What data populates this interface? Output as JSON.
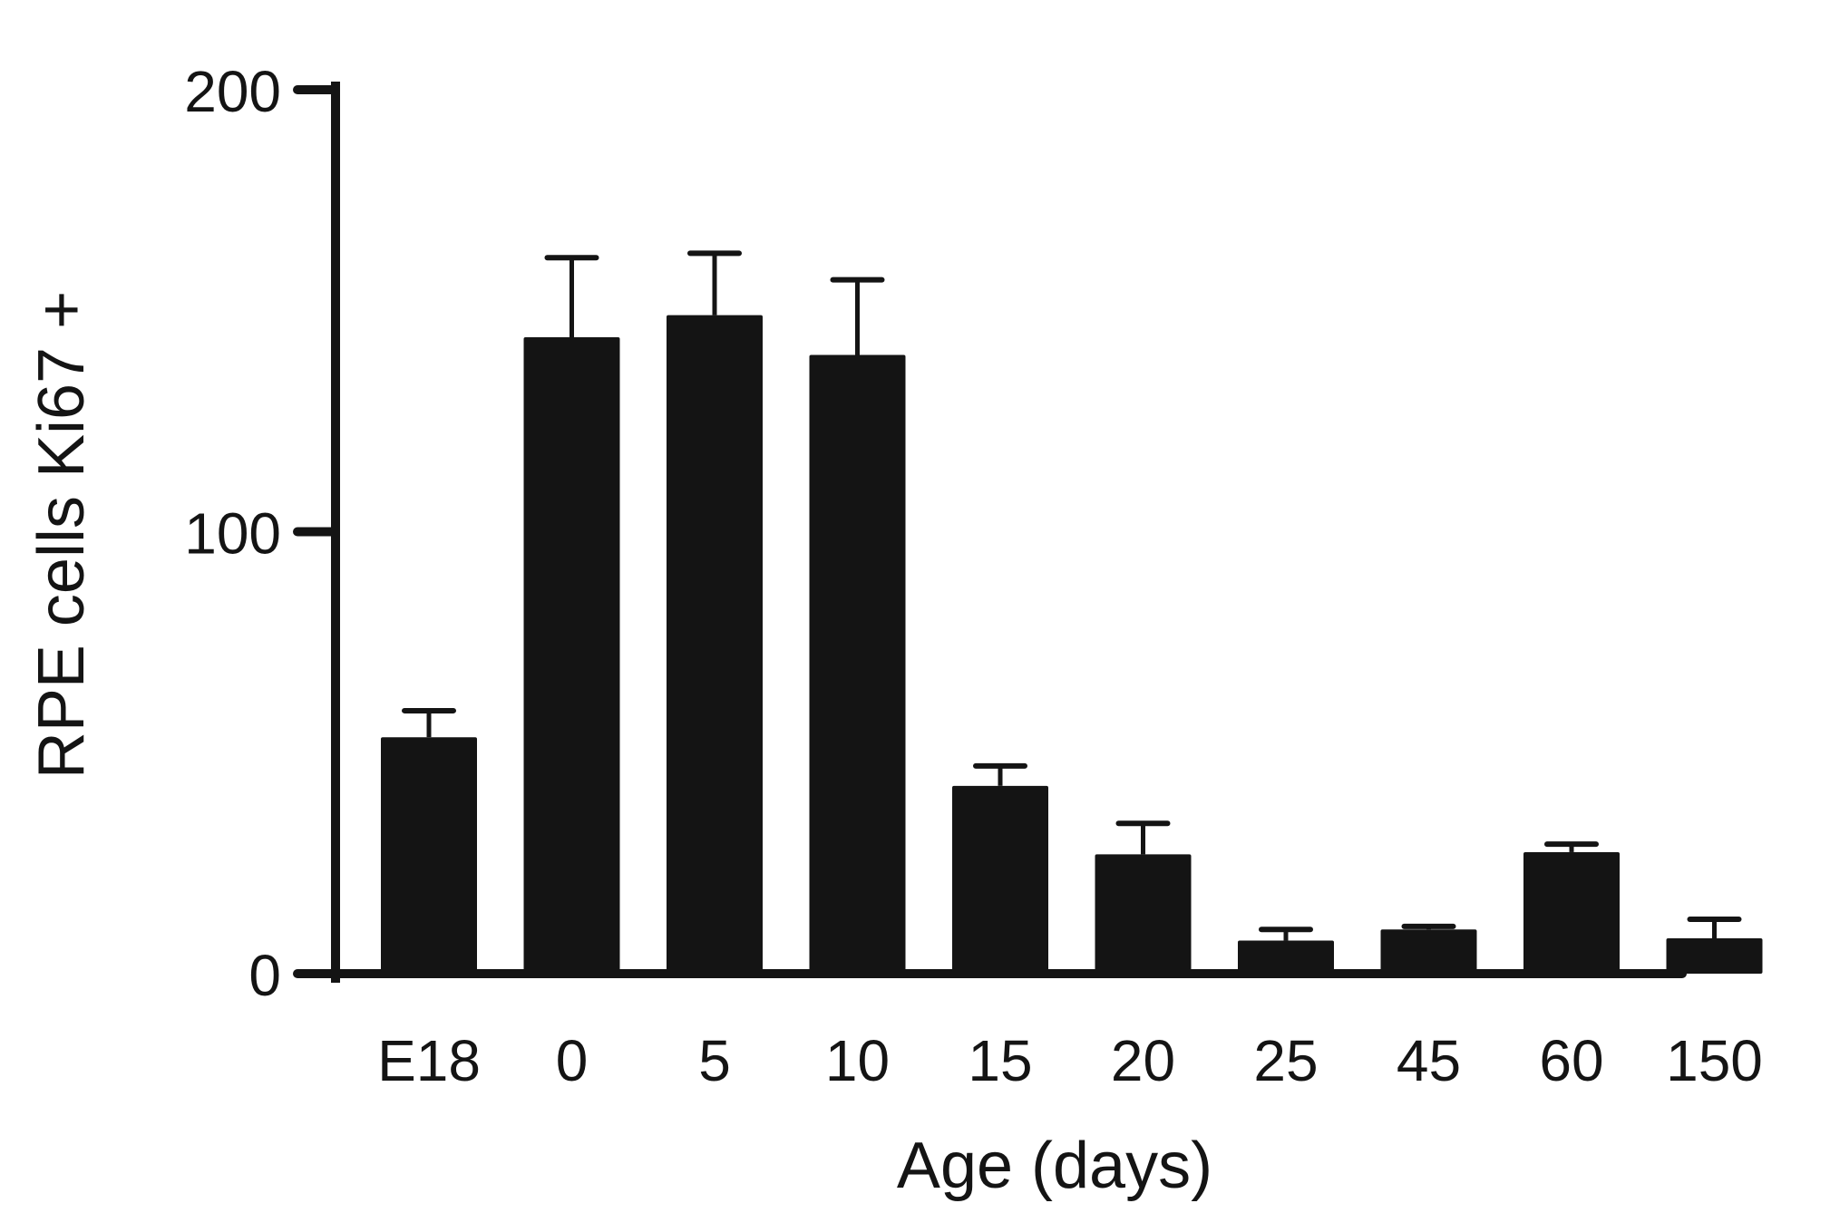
{
  "chart_data": {
    "type": "bar",
    "title": "",
    "xlabel": "Age (days)",
    "ylabel": "RPE cells Ki67 +",
    "categories": [
      "E18",
      "0",
      "5",
      "10",
      "15",
      "20",
      "25",
      "45",
      "60",
      "150"
    ],
    "values": [
      53.5,
      144,
      149,
      140,
      42.5,
      27,
      7.5,
      10,
      27.5,
      8
    ],
    "error_upper": [
      59.5,
      162,
      163,
      157,
      47,
      34,
      10,
      10.7,
      29.3,
      12.3
    ],
    "ylim": [
      0,
      200
    ],
    "yticks": [
      0,
      100,
      200
    ],
    "ytick_labels": [
      "0",
      "100",
      "200"
    ],
    "grid": false,
    "legend": "none",
    "bar_color": "#141414"
  }
}
